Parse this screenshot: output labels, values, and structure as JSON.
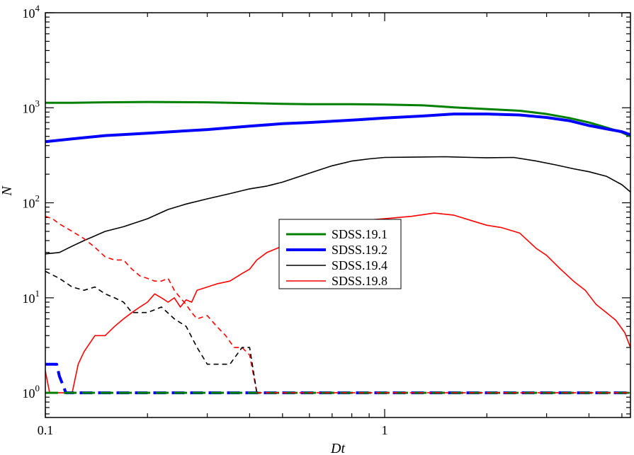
{
  "chart_data": {
    "type": "line",
    "title": "",
    "xlabel": "Dt",
    "ylabel": "N",
    "xscale": "log",
    "yscale": "log",
    "xlim": [
      0.1,
      5.3
    ],
    "ylim": [
      0.55,
      10000
    ],
    "grid": false,
    "legend_position": "center",
    "x_ticks": [
      {
        "value": 0.1,
        "label": "0.1"
      },
      {
        "value": 1,
        "label": "1"
      }
    ],
    "y_ticks": [
      {
        "value": 1,
        "base": "10",
        "exp": "0"
      },
      {
        "value": 10,
        "base": "10",
        "exp": "1"
      },
      {
        "value": 100,
        "base": "10",
        "exp": "2"
      },
      {
        "value": 1000,
        "base": "10",
        "exp": "3"
      },
      {
        "value": 10000,
        "base": "10",
        "exp": "4"
      }
    ],
    "series": [
      {
        "name": "SDSS.19.1",
        "color": "#008000",
        "style": "solid",
        "width": 3,
        "legend": true,
        "x": [
          0.1,
          0.12,
          0.15,
          0.2,
          0.3,
          0.4,
          0.5,
          0.6,
          0.8,
          1.0,
          1.3,
          1.6,
          2.0,
          2.5,
          3.0,
          3.5,
          4.0,
          4.5,
          5.0,
          5.3
        ],
        "y": [
          1130,
          1130,
          1140,
          1150,
          1140,
          1120,
          1100,
          1090,
          1090,
          1080,
          1060,
          1010,
          970,
          930,
          860,
          780,
          700,
          620,
          550,
          500
        ]
      },
      {
        "name": "SDSS.19.2",
        "color": "#0000ff",
        "style": "solid",
        "width": 4,
        "legend": true,
        "x": [
          0.1,
          0.12,
          0.15,
          0.2,
          0.3,
          0.4,
          0.5,
          0.6,
          0.8,
          1.0,
          1.3,
          1.6,
          2.0,
          2.5,
          3.0,
          3.5,
          4.0,
          4.5,
          5.0,
          5.3
        ],
        "y": [
          440,
          470,
          510,
          540,
          590,
          640,
          680,
          700,
          740,
          780,
          820,
          860,
          860,
          840,
          790,
          730,
          650,
          600,
          560,
          520
        ]
      },
      {
        "name": "SDSS.19.4",
        "color": "#000000",
        "style": "solid",
        "width": 1.6,
        "legend": true,
        "x": [
          0.1,
          0.11,
          0.12,
          0.13,
          0.15,
          0.17,
          0.2,
          0.23,
          0.26,
          0.3,
          0.35,
          0.4,
          0.45,
          0.5,
          0.6,
          0.7,
          0.8,
          0.9,
          1.0,
          1.2,
          1.5,
          1.8,
          2.0,
          2.4,
          2.8,
          3.2,
          3.6,
          4.0,
          4.5,
          5.0,
          5.3
        ],
        "y": [
          29,
          30,
          35,
          40,
          50,
          56,
          68,
          85,
          97,
          110,
          125,
          140,
          150,
          165,
          205,
          245,
          275,
          290,
          300,
          302,
          305,
          300,
          298,
          300,
          275,
          250,
          228,
          212,
          190,
          155,
          130
        ]
      },
      {
        "name": "SDSS.19.8",
        "color": "#ff0000",
        "style": "solid",
        "width": 1.6,
        "legend": true,
        "x": [
          0.1,
          0.103,
          0.107,
          0.12,
          0.125,
          0.13,
          0.14,
          0.15,
          0.16,
          0.17,
          0.18,
          0.19,
          0.2,
          0.21,
          0.22,
          0.23,
          0.24,
          0.25,
          0.26,
          0.27,
          0.28,
          0.3,
          0.32,
          0.35,
          0.38,
          0.4,
          0.42,
          0.45,
          0.5,
          0.55,
          0.6,
          0.7,
          0.8,
          0.9,
          1.0,
          1.2,
          1.4,
          1.6,
          1.8,
          2.0,
          2.2,
          2.5,
          2.8,
          3.0,
          3.3,
          3.6,
          3.9,
          4.2,
          4.5,
          4.8,
          5.1,
          5.3
        ],
        "y": [
          1.7,
          1.0,
          1.0,
          1.0,
          2.0,
          2.7,
          4.0,
          4.0,
          5.0,
          6.0,
          7.0,
          8.0,
          9.0,
          11.0,
          10.0,
          9.0,
          10.0,
          8.0,
          9.5,
          9.0,
          12.0,
          13.0,
          14.0,
          15.0,
          18.0,
          20.0,
          25.0,
          30.0,
          35.0,
          40.0,
          45.0,
          55.0,
          62.0,
          66.0,
          68.0,
          72.0,
          78.0,
          74.0,
          65.0,
          58.0,
          55.0,
          48.0,
          33.0,
          28.0,
          20.0,
          15.0,
          12.0,
          8.5,
          7.0,
          5.8,
          4.3,
          3.0
        ]
      },
      {
        "name": "",
        "color": "#ff0000",
        "style": "dashed",
        "width": 1.6,
        "legend": false,
        "x": [
          0.1,
          0.105,
          0.11,
          0.12,
          0.13,
          0.14,
          0.15,
          0.16,
          0.17,
          0.18,
          0.19,
          0.2,
          0.21,
          0.22,
          0.23,
          0.24,
          0.25,
          0.26,
          0.27,
          0.28,
          0.3,
          0.32,
          0.34,
          0.36,
          0.38,
          0.4,
          0.42
        ],
        "y": [
          72,
          68,
          60,
          50,
          42,
          34,
          27,
          25,
          25,
          20,
          17,
          16,
          15,
          15,
          16,
          12,
          10,
          8.5,
          7.0,
          6.0,
          6.5,
          5.0,
          4.0,
          3.0,
          3.0,
          2.5,
          1.0
        ]
      },
      {
        "name": "",
        "color": "#000000",
        "style": "dashed",
        "width": 1.6,
        "legend": false,
        "x": [
          0.1,
          0.11,
          0.12,
          0.13,
          0.14,
          0.15,
          0.16,
          0.17,
          0.18,
          0.2,
          0.22,
          0.24,
          0.26,
          0.28,
          0.3,
          0.32,
          0.35,
          0.38,
          0.4,
          0.42
        ],
        "y": [
          19,
          16,
          13,
          12,
          13,
          11,
          10,
          9,
          7,
          7,
          8,
          6,
          5,
          3,
          2,
          2,
          2,
          3,
          3,
          1.0
        ]
      },
      {
        "name": "",
        "color": "#0000ff",
        "style": "longdash",
        "width": 4,
        "legend": false,
        "x": [
          0.1,
          0.105,
          0.108,
          0.11,
          0.115,
          5.3
        ],
        "y": [
          2.0,
          2.0,
          2.0,
          1.5,
          1.0,
          1.0
        ]
      },
      {
        "name": "",
        "color": "#008000",
        "style": "longdash",
        "width": 3,
        "legend": false,
        "x": [
          0.1,
          5.3
        ],
        "y": [
          1.0,
          1.0
        ]
      },
      {
        "name": "",
        "color": "#ff0000",
        "style": "dashed",
        "width": 1.6,
        "legend": false,
        "x": [
          0.42,
          5.3
        ],
        "y": [
          1.0,
          1.0
        ]
      }
    ]
  }
}
